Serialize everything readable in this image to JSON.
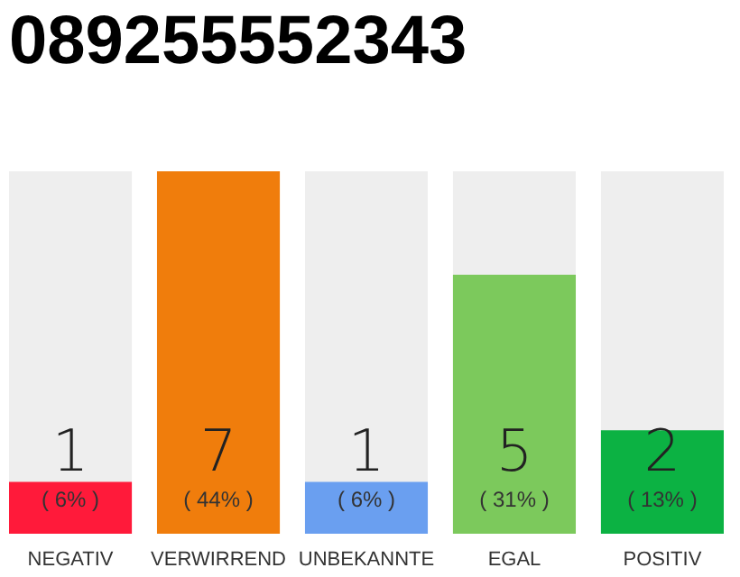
{
  "chart_data": {
    "type": "bar",
    "title": "089255552343",
    "categories": [
      "NEGATIV",
      "VERWIRREND",
      "UNBEKANNTE",
      "EGAL",
      "POSITIV"
    ],
    "values": [
      1,
      7,
      1,
      5,
      2
    ],
    "colors": [
      "#ff1a3a",
      "#f07d0c",
      "#6a9ff0",
      "#7cc95c",
      "#0cb243"
    ],
    "data_labels": true,
    "annotations": [
      "( 6% )",
      "( 44% )",
      "( 6% )",
      "( 31% )",
      "( 13% )"
    ]
  }
}
